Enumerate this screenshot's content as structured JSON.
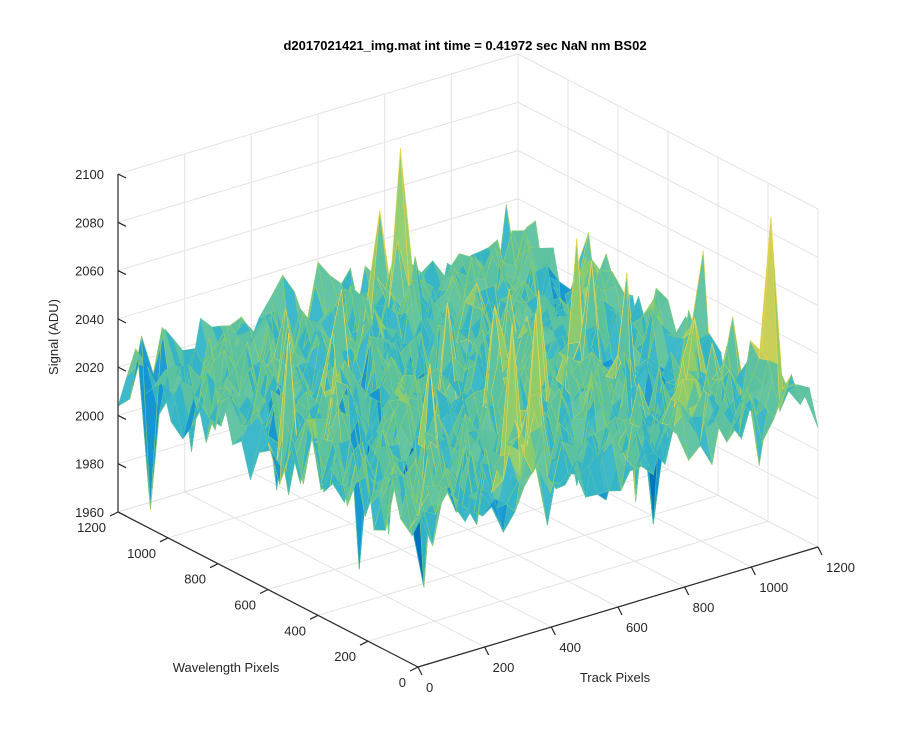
{
  "chart_data": {
    "type": "surface",
    "title": "d2017021421_img.mat int time = 0.41972 sec  NaN nm BS02",
    "xlabel": "Track Pixels",
    "ylabel": "Wavelength Pixels",
    "zlabel": "Signal (ADU)",
    "xlim": [
      0,
      1200
    ],
    "ylim": [
      0,
      1200
    ],
    "zlim": [
      1960,
      2100
    ],
    "x_ticks": [
      "0",
      "200",
      "400",
      "600",
      "800",
      "1000",
      "1200"
    ],
    "y_ticks": [
      "0",
      "200",
      "400",
      "600",
      "800",
      "1000",
      "1200"
    ],
    "z_ticks": [
      "1960",
      "1980",
      "2000",
      "2020",
      "2040",
      "2060",
      "2080",
      "2100"
    ],
    "surface_summary": {
      "baseline": 2020,
      "noise_min": 1960,
      "noise_max": 2100,
      "colormap": [
        "#0072bd",
        "#1496d4",
        "#34b4c8",
        "#5cc2a0",
        "#8fcc6c",
        "#c8d058",
        "#f0d24a"
      ]
    },
    "grid": true,
    "view": "3d"
  }
}
